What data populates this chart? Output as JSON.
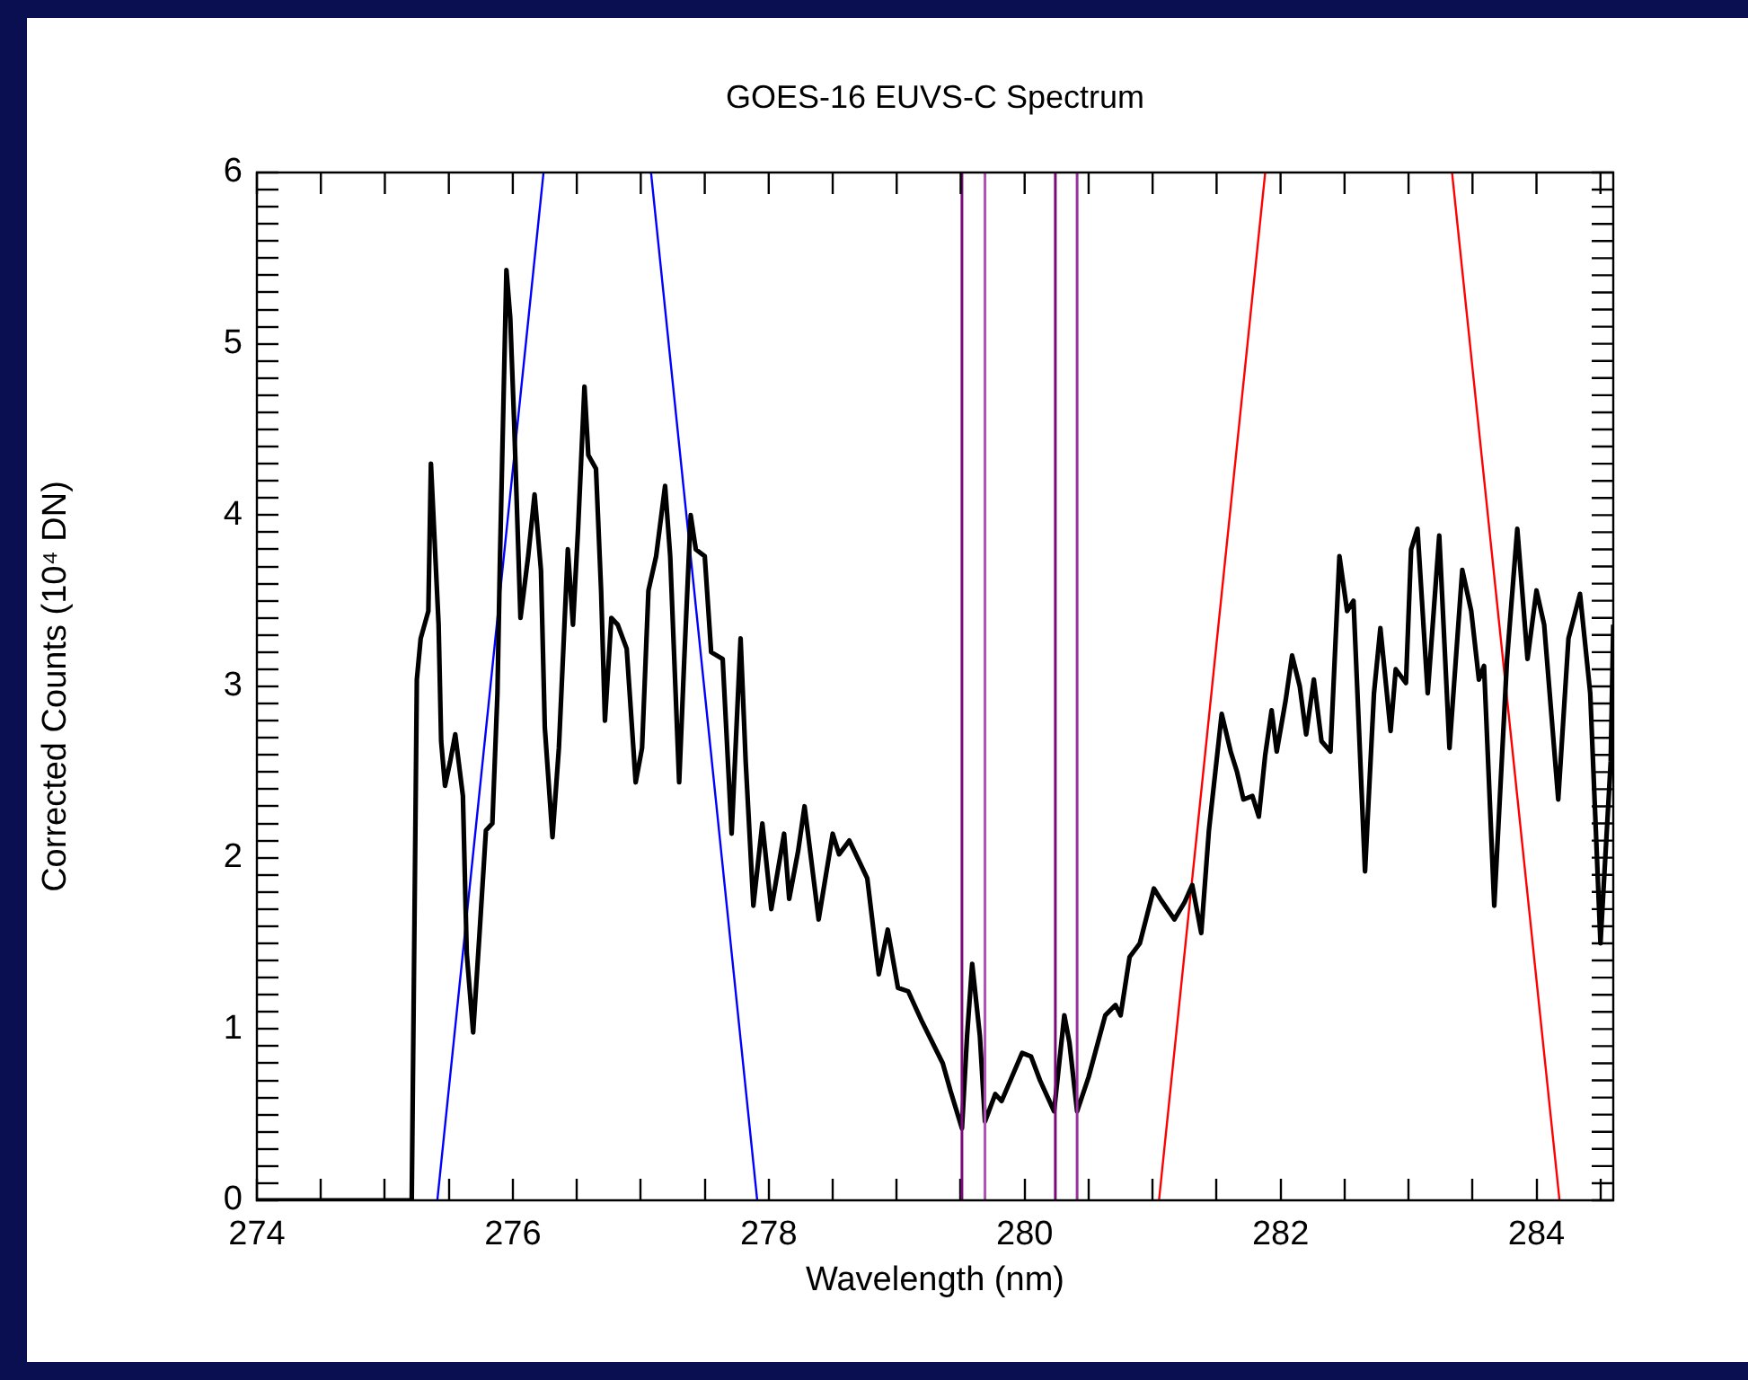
{
  "chart_data": {
    "type": "line",
    "title": "GOES-16 EUVS-C Spectrum",
    "xlabel": "Wavelength (nm)",
    "ylabel": "Corrected Counts (10⁴ DN)",
    "marker": "none",
    "xlim": [
      274,
      284.6
    ],
    "ylim": [
      0,
      6
    ],
    "xticks": [
      274,
      {
        "value": 274.5,
        "label": null
      },
      {
        "value": 275,
        "label": null
      },
      {
        "value": 275.5,
        "label": null
      },
      276,
      {
        "value": 276.5,
        "label": null
      },
      {
        "value": 277,
        "label": null
      },
      {
        "value": 277.5,
        "label": null
      },
      278,
      {
        "value": 278.5,
        "label": null
      },
      {
        "value": 279,
        "label": null
      },
      {
        "value": 279.5,
        "label": null
      },
      280,
      {
        "value": 280.5,
        "label": null
      },
      {
        "value": 281,
        "label": null
      },
      {
        "value": 281.5,
        "label": null
      },
      282,
      {
        "value": 282.5,
        "label": null
      },
      {
        "value": 283,
        "label": null
      },
      {
        "value": 283.5,
        "label": null
      },
      284,
      {
        "value": 284.5,
        "label": null
      }
    ],
    "yticks": [
      0,
      {
        "value": 0.1,
        "label": null
      },
      {
        "value": 0.2,
        "label": null
      },
      {
        "value": 0.3,
        "label": null
      },
      {
        "value": 0.4,
        "label": null
      },
      {
        "value": 0.5,
        "label": null
      },
      {
        "value": 0.6,
        "label": null
      },
      {
        "value": 0.7,
        "label": null
      },
      {
        "value": 0.8,
        "label": null
      },
      {
        "value": 0.9,
        "label": null
      },
      1,
      {
        "value": 1.1,
        "label": null
      },
      {
        "value": 1.2,
        "label": null
      },
      {
        "value": 1.3,
        "label": null
      },
      {
        "value": 1.4,
        "label": null
      },
      {
        "value": 1.5,
        "label": null
      },
      {
        "value": 1.6,
        "label": null
      },
      {
        "value": 1.7,
        "label": null
      },
      {
        "value": 1.8,
        "label": null
      },
      {
        "value": 1.9,
        "label": null
      },
      2,
      {
        "value": 2.1,
        "label": null
      },
      {
        "value": 2.2,
        "label": null
      },
      {
        "value": 2.3,
        "label": null
      },
      {
        "value": 2.4,
        "label": null
      },
      {
        "value": 2.5,
        "label": null
      },
      {
        "value": 2.6,
        "label": null
      },
      {
        "value": 2.7,
        "label": null
      },
      {
        "value": 2.8,
        "label": null
      },
      {
        "value": 2.9,
        "label": null
      },
      3,
      {
        "value": 3.1,
        "label": null
      },
      {
        "value": 3.2,
        "label": null
      },
      {
        "value": 3.3,
        "label": null
      },
      {
        "value": 3.4,
        "label": null
      },
      {
        "value": 3.5,
        "label": null
      },
      {
        "value": 3.6,
        "label": null
      },
      {
        "value": 3.7,
        "label": null
      },
      {
        "value": 3.8,
        "label": null
      },
      {
        "value": 3.9,
        "label": null
      },
      4,
      {
        "value": 4.1,
        "label": null
      },
      {
        "value": 4.2,
        "label": null
      },
      {
        "value": 4.3,
        "label": null
      },
      {
        "value": 4.4,
        "label": null
      },
      {
        "value": 4.5,
        "label": null
      },
      {
        "value": 4.6,
        "label": null
      },
      {
        "value": 4.7,
        "label": null
      },
      {
        "value": 4.8,
        "label": null
      },
      {
        "value": 4.9,
        "label": null
      },
      5,
      {
        "value": 5.1,
        "label": null
      },
      {
        "value": 5.2,
        "label": null
      },
      {
        "value": 5.3,
        "label": null
      },
      {
        "value": 5.4,
        "label": null
      },
      {
        "value": 5.5,
        "label": null
      },
      {
        "value": 5.6,
        "label": null
      },
      {
        "value": 5.7,
        "label": null
      },
      {
        "value": 5.8,
        "label": null
      },
      {
        "value": 5.9,
        "label": null
      },
      6
    ],
    "series": [
      {
        "color": "#000000",
        "x": [
          274,
          275.21,
          275.25,
          275.28,
          275.34,
          275.36,
          275.42,
          275.44,
          275.47,
          275.51,
          275.55,
          275.61,
          275.64,
          275.69,
          275.74,
          275.79,
          275.84,
          275.88,
          275.9,
          275.95,
          275.98,
          276.01,
          276.06,
          276.12,
          276.17,
          276.22,
          276.25,
          276.31,
          276.36,
          276.43,
          276.47,
          276.51,
          276.56,
          276.59,
          276.65,
          276.69,
          276.72,
          276.77,
          276.82,
          276.89,
          276.96,
          277.01,
          277.06,
          277.12,
          277.19,
          277.23,
          277.3,
          277.34,
          277.39,
          277.43,
          277.5,
          277.55,
          277.64,
          277.71,
          277.78,
          277.82,
          277.88,
          277.95,
          278.02,
          278.12,
          278.16,
          278.23,
          278.28,
          278.39,
          278.5,
          278.55,
          278.63,
          278.77,
          278.86,
          278.93,
          279.01,
          279.09,
          279.2,
          279.36,
          279.42,
          279.51,
          279.55,
          279.59,
          279.65,
          279.69,
          279.77,
          279.82,
          279.9,
          279.98,
          280.05,
          280.12,
          280.23,
          280.31,
          280.35,
          280.41,
          280.5,
          280.63,
          280.71,
          280.75,
          280.82,
          280.9,
          281.01,
          281.06,
          281.17,
          281.25,
          281.31,
          281.38,
          281.44,
          281.54,
          281.61,
          281.66,
          281.71,
          281.78,
          281.83,
          281.88,
          281.93,
          281.97,
          282.04,
          282.09,
          282.15,
          282.2,
          282.26,
          282.32,
          282.39,
          282.46,
          282.52,
          282.57,
          282.66,
          282.73,
          282.78,
          282.86,
          282.9,
          282.98,
          283.02,
          283.07,
          283.15,
          283.24,
          283.32,
          283.42,
          283.49,
          283.55,
          283.59,
          283.67,
          283.77,
          283.85,
          283.93,
          284,
          284.06,
          284.17,
          284.25,
          284.34,
          284.42,
          284.5,
          284.58,
          284.6
        ],
        "values": [
          0,
          0,
          3.04,
          3.28,
          3.44,
          4.3,
          3.36,
          2.68,
          2.42,
          2.56,
          2.72,
          2.36,
          1.44,
          0.98,
          1.56,
          2.16,
          2.2,
          2.96,
          3.76,
          5.43,
          5.15,
          4.55,
          3.4,
          3.76,
          4.12,
          3.68,
          2.76,
          2.12,
          2.64,
          3.8,
          3.36,
          3.92,
          4.75,
          4.35,
          4.27,
          3.56,
          2.8,
          3.4,
          3.36,
          3.22,
          2.44,
          2.64,
          3.56,
          3.76,
          4.17,
          3.76,
          2.44,
          3.16,
          4.0,
          3.8,
          3.76,
          3.2,
          3.16,
          2.14,
          3.28,
          2.56,
          1.72,
          2.2,
          1.7,
          2.14,
          1.76,
          2.04,
          2.3,
          1.64,
          2.14,
          2.02,
          2.1,
          1.88,
          1.32,
          1.58,
          1.24,
          1.22,
          1.04,
          0.8,
          0.64,
          0.42,
          0.96,
          1.38,
          0.96,
          0.46,
          0.62,
          0.58,
          0.72,
          0.86,
          0.84,
          0.7,
          0.52,
          1.08,
          0.92,
          0.52,
          0.72,
          1.08,
          1.14,
          1.08,
          1.42,
          1.5,
          1.82,
          1.76,
          1.64,
          1.74,
          1.84,
          1.56,
          2.16,
          2.84,
          2.62,
          2.5,
          2.34,
          2.36,
          2.24,
          2.6,
          2.86,
          2.62,
          2.92,
          3.18,
          3.0,
          2.72,
          3.04,
          2.68,
          2.62,
          3.76,
          3.44,
          3.5,
          1.92,
          2.96,
          3.34,
          2.74,
          3.1,
          3.02,
          3.8,
          3.92,
          2.96,
          3.88,
          2.64,
          3.68,
          3.44,
          3.04,
          3.12,
          1.72,
          3.16,
          3.92,
          3.16,
          3.56,
          3.36,
          2.34,
          3.28,
          3.54,
          2.96,
          1.5,
          2.56,
          3.36
        ]
      },
      {
        "type": "line",
        "color": "#0000ff",
        "x": [
          275.41,
          276.24
        ],
        "values": [
          0,
          6
        ]
      },
      {
        "type": "line",
        "color": "#0000ff",
        "x": [
          277.08,
          277.91
        ],
        "values": [
          6,
          0
        ]
      },
      {
        "type": "line",
        "color": "#ff0000",
        "x": [
          281.05,
          281.88
        ],
        "values": [
          0,
          6
        ]
      },
      {
        "type": "line",
        "color": "#ff0000",
        "x": [
          283.34,
          284.18
        ],
        "values": [
          6,
          0
        ]
      }
    ],
    "ref_lines": [
      {
        "axis": "x",
        "value": 279.51,
        "color": "#7a0a7a"
      },
      {
        "axis": "x",
        "value": 279.69,
        "color": "#b050b0"
      },
      {
        "axis": "x",
        "value": 280.24,
        "color": "#7a0a7a"
      },
      {
        "axis": "x",
        "value": 280.41,
        "color": "#9a30a0"
      }
    ]
  }
}
